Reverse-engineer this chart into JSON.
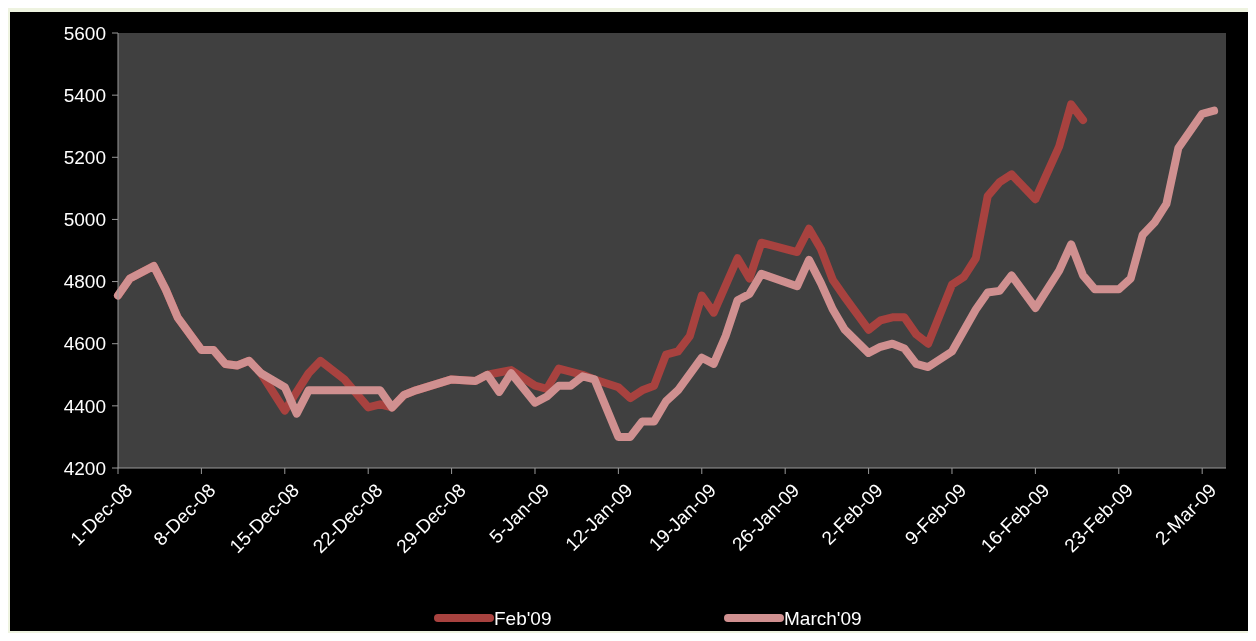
{
  "chart_data": {
    "type": "line",
    "xlim": [
      "2008-12-01",
      "2009-03-04"
    ],
    "xticks": [
      {
        "value": "2008-12-01",
        "label": "1-Dec-08"
      },
      {
        "value": "2008-12-08",
        "label": "8-Dec-08"
      },
      {
        "value": "2008-12-15",
        "label": "15-Dec-08"
      },
      {
        "value": "2008-12-22",
        "label": "22-Dec-08"
      },
      {
        "value": "2008-12-29",
        "label": "29-Dec-08"
      },
      {
        "value": "2009-01-05",
        "label": "5-Jan-09"
      },
      {
        "value": "2009-01-12",
        "label": "12-Jan-09"
      },
      {
        "value": "2009-01-19",
        "label": "19-Jan-09"
      },
      {
        "value": "2009-01-26",
        "label": "26-Jan-09"
      },
      {
        "value": "2009-02-02",
        "label": "2-Feb-09"
      },
      {
        "value": "2009-02-09",
        "label": "9-Feb-09"
      },
      {
        "value": "2009-02-16",
        "label": "16-Feb-09"
      },
      {
        "value": "2009-02-23",
        "label": "23-Feb-09"
      },
      {
        "value": "2009-03-02",
        "label": "2-Mar-09"
      }
    ],
    "ylim": [
      4200,
      5600
    ],
    "yticks": [
      4200,
      4400,
      4600,
      4800,
      5000,
      5200,
      5400,
      5600
    ],
    "grid": false,
    "legend": "bottom",
    "marker": "none",
    "line_style": "solid",
    "series": [
      {
        "name": "Feb'09",
        "color": "#a8423f",
        "x": [
          "2008-12-01",
          "2008-12-02",
          "2008-12-03",
          "2008-12-04",
          "2008-12-05",
          "2008-12-06",
          "2008-12-08",
          "2008-12-09",
          "2008-12-10",
          "2008-12-11",
          "2008-12-12",
          "2008-12-13",
          "2008-12-15",
          "2008-12-17",
          "2008-12-18",
          "2008-12-20",
          "2008-12-22",
          "2008-12-23",
          "2008-12-24",
          "2008-12-25",
          "2008-12-26",
          "2008-12-29",
          "2008-12-31",
          "2009-01-01",
          "2009-01-03",
          "2009-01-05",
          "2009-01-06",
          "2009-01-07",
          "2009-01-09",
          "2009-01-10",
          "2009-01-12",
          "2009-01-13",
          "2009-01-14",
          "2009-01-15",
          "2009-01-16",
          "2009-01-17",
          "2009-01-18",
          "2009-01-19",
          "2009-01-20",
          "2009-01-22",
          "2009-01-23",
          "2009-01-24",
          "2009-01-27",
          "2009-01-28",
          "2009-01-29",
          "2009-01-30",
          "2009-01-31",
          "2009-02-02",
          "2009-02-03",
          "2009-02-04",
          "2009-02-05",
          "2009-02-06",
          "2009-02-07",
          "2009-02-09",
          "2009-02-10",
          "2009-02-11",
          "2009-02-12",
          "2009-02-13",
          "2009-02-14",
          "2009-02-16",
          "2009-02-18",
          "2009-02-19",
          "2009-02-20"
        ],
        "values": [
          4755,
          4810,
          4830,
          4850,
          4775,
          4685,
          4580,
          4580,
          4535,
          4530,
          4545,
          4505,
          4385,
          4505,
          4545,
          4485,
          4395,
          4405,
          4395,
          4435,
          4450,
          4485,
          4480,
          4500,
          4515,
          4465,
          4455,
          4520,
          4500,
          4485,
          4460,
          4425,
          4450,
          4465,
          4565,
          4575,
          4625,
          4755,
          4700,
          4875,
          4810,
          4925,
          4895,
          4970,
          4905,
          4805,
          4750,
          4645,
          4675,
          4685,
          4685,
          4630,
          4600,
          4790,
          4815,
          4875,
          5075,
          5120,
          5145,
          5065,
          5235,
          5370,
          5320
        ]
      },
      {
        "name": "March'09",
        "color": "#d09090",
        "x": [
          "2008-12-01",
          "2008-12-02",
          "2008-12-03",
          "2008-12-04",
          "2008-12-05",
          "2008-12-06",
          "2008-12-08",
          "2008-12-09",
          "2008-12-10",
          "2008-12-11",
          "2008-12-12",
          "2008-12-13",
          "2008-12-15",
          "2008-12-16",
          "2008-12-17",
          "2008-12-23",
          "2008-12-24",
          "2008-12-25",
          "2008-12-26",
          "2008-12-29",
          "2008-12-31",
          "2009-01-01",
          "2009-01-02",
          "2009-01-03",
          "2009-01-05",
          "2009-01-06",
          "2009-01-07",
          "2009-01-08",
          "2009-01-09",
          "2009-01-10",
          "2009-01-12",
          "2009-01-13",
          "2009-01-14",
          "2009-01-15",
          "2009-01-16",
          "2009-01-17",
          "2009-01-19",
          "2009-01-20",
          "2009-01-21",
          "2009-01-22",
          "2009-01-23",
          "2009-01-24",
          "2009-01-27",
          "2009-01-28",
          "2009-01-29",
          "2009-01-30",
          "2009-01-31",
          "2009-02-02",
          "2009-02-03",
          "2009-02-04",
          "2009-02-05",
          "2009-02-06",
          "2009-02-07",
          "2009-02-09",
          "2009-02-11",
          "2009-02-12",
          "2009-02-13",
          "2009-02-14",
          "2009-02-16",
          "2009-02-18",
          "2009-02-19",
          "2009-02-20",
          "2009-02-21",
          "2009-02-23",
          "2009-02-24",
          "2009-02-25",
          "2009-02-26",
          "2009-02-27",
          "2009-02-28",
          "2009-03-02",
          "2009-03-03"
        ],
        "values": [
          4755,
          4810,
          4830,
          4850,
          4775,
          4685,
          4580,
          4580,
          4535,
          4530,
          4545,
          4505,
          4460,
          4375,
          4450,
          4450,
          4395,
          4435,
          4450,
          4485,
          4480,
          4500,
          4445,
          4505,
          4410,
          4430,
          4465,
          4465,
          4495,
          4485,
          4300,
          4300,
          4350,
          4350,
          4415,
          4450,
          4555,
          4535,
          4625,
          4740,
          4760,
          4825,
          4785,
          4870,
          4795,
          4710,
          4645,
          4570,
          4590,
          4600,
          4585,
          4535,
          4525,
          4575,
          4710,
          4765,
          4770,
          4820,
          4715,
          4835,
          4920,
          4820,
          4775,
          4775,
          4810,
          4950,
          4990,
          5050,
          5230,
          5340,
          5350
        ]
      }
    ]
  }
}
